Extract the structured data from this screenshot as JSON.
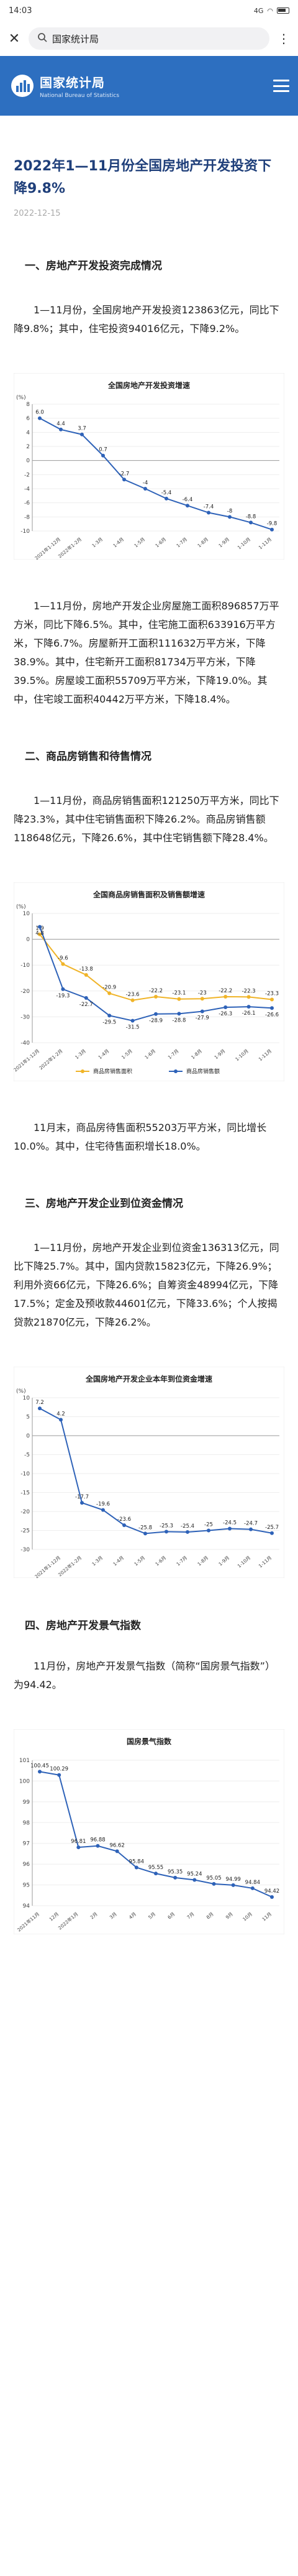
{
  "status": {
    "time": "14:03",
    "signal": "4G"
  },
  "browser": {
    "address_text": "国家统计局"
  },
  "site": {
    "name_cn": "国家统计局",
    "name_en": "National Bureau of Statistics"
  },
  "article": {
    "title": "2022年1—11月份全国房地产开发投资下降9.8%",
    "date": "2022-12-15",
    "sections": [
      {
        "heading": "一、房地产开发投资完成情况"
      },
      {
        "heading": "二、商品房销售和待售情况"
      },
      {
        "heading": "三、房地产开发企业到位资金情况"
      },
      {
        "heading": "四、房地产开发景气指数"
      }
    ],
    "paragraphs": [
      "1—11月份，全国房地产开发投资123863亿元，同比下降9.8%；其中，住宅投资94016亿元，下降9.2%。",
      "1—11月份，房地产开发企业房屋施工面积896857万平方米，同比下降6.5%。其中，住宅施工面积633916万平方米，下降6.7%。房屋新开工面积111632万平方米，下降38.9%。其中，住宅新开工面积81734万平方米，下降39.5%。房屋竣工面积55709万平方米，下降19.0%。其中，住宅竣工面积40442万平方米，下降18.4%。",
      "1—11月份，商品房销售面积121250万平方米，同比下降23.3%，其中住宅销售面积下降26.2%。商品房销售额118648亿元，下降26.6%，其中住宅销售额下降28.4%。",
      "11月末，商品房待售面积55203万平方米，同比增长10.0%。其中，住宅待售面积增长18.0%。",
      "1—11月份，房地产开发企业到位资金136313亿元，同比下降25.7%。其中，国内贷款15823亿元，下降26.9%；利用外资66亿元，下降26.6%；自筹资金48994亿元，下降17.5%；定金及预收款44601亿元，下降33.6%；个人按揭贷款21870亿元，下降26.2%。",
      "11月份，房地产开发景气指数（简称“国房景气指数”）为94.42。"
    ]
  },
  "chart_data": [
    {
      "type": "line",
      "title": "全国房地产开发投资增速",
      "ylabel": "(%)",
      "categories": [
        "2021年1-12月",
        "2022年1-2月",
        "1-3月",
        "1-4月",
        "1-5月",
        "1-6月",
        "1-7月",
        "1-8月",
        "1-9月",
        "1-10月",
        "1-11月"
      ],
      "series": [
        {
          "values": [
            4.4,
            3.7,
            0.7,
            -2.7,
            -4.0,
            -5.4,
            -6.4,
            -7.4,
            -8.0,
            -8.8,
            -9.8
          ]
        }
      ],
      "extra_point": {
        "label": "6.0",
        "value": 6.0
      },
      "ylim": [
        -10,
        8
      ],
      "yticks": [
        8,
        6,
        4,
        2,
        0,
        -2,
        -4,
        -6,
        -8,
        -10
      ],
      "color": "#2e62b8"
    },
    {
      "type": "line",
      "title": "全国商品房销售面积及销售额增速",
      "ylabel": "(%)",
      "categories": [
        "2021年1-12月",
        "2022年1-2月",
        "1-3月",
        "1-4月",
        "1-5月",
        "1-6月",
        "1-7月",
        "1-8月",
        "1-9月",
        "1-10月",
        "1-11月"
      ],
      "series": [
        {
          "name": "商品房销售面积",
          "values": [
            1.9,
            -9.6,
            -13.8,
            -20.9,
            -23.6,
            -22.2,
            -23.1,
            -23.0,
            -22.2,
            -22.3,
            -23.3
          ],
          "color": "#f0b428"
        },
        {
          "name": "商品房销售额",
          "values": [
            4.8,
            -19.3,
            -22.7,
            -29.5,
            -31.5,
            -28.9,
            -28.8,
            -27.9,
            -26.3,
            -26.1,
            -26.6
          ],
          "color": "#2e62b8"
        }
      ],
      "ylim": [
        -40,
        10
      ],
      "yticks": [
        10,
        0,
        -10,
        -20,
        -30,
        -40
      ]
    },
    {
      "type": "line",
      "title": "全国房地产开发企业本年到位资金增速",
      "ylabel": "(%)",
      "categories": [
        "2021年1-12月",
        "2022年1-2月",
        "1-3月",
        "1-4月",
        "1-5月",
        "1-6月",
        "1-7月",
        "1-8月",
        "1-9月",
        "1-10月",
        "1-11月"
      ],
      "series": [
        {
          "values": [
            4.2,
            -17.7,
            -19.6,
            -23.6,
            -25.8,
            -25.3,
            -25.4,
            -25.0,
            -24.5,
            -24.7,
            -25.7
          ]
        }
      ],
      "extra_point": {
        "label": "7.2",
        "value": 7.2
      },
      "ylim": [
        -30,
        10
      ],
      "yticks": [
        10,
        5,
        0,
        -5,
        -10,
        -15,
        -20,
        -25,
        -30
      ],
      "color": "#2e62b8"
    },
    {
      "type": "line",
      "title": "国房景气指数",
      "categories": [
        "2021年11月",
        "12月",
        "2022年1月",
        "2月",
        "3月",
        "4月",
        "5月",
        "6月",
        "7月",
        "8月",
        "9月",
        "10月",
        "11月"
      ],
      "series": [
        {
          "values": [
            100.45,
            100.29,
            96.81,
            96.88,
            96.62,
            95.84,
            95.55,
            95.35,
            95.24,
            95.05,
            94.99,
            94.84,
            94.42
          ]
        }
      ],
      "ylim": [
        94,
        101
      ],
      "yticks": [
        101,
        100,
        99,
        98,
        97,
        96,
        95,
        94
      ],
      "color": "#2e62b8"
    }
  ]
}
